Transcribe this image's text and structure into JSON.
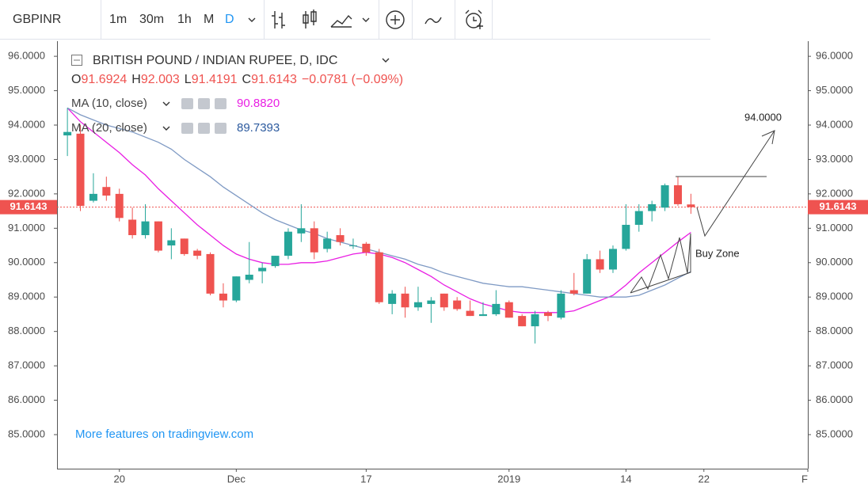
{
  "toolbar": {
    "symbol": "GBPINR",
    "intervals": [
      "1m",
      "30m",
      "1h",
      "M",
      "D"
    ],
    "active_interval": 4
  },
  "legend": {
    "change": "−0.0781 (−0.09%)",
    "ohlc_keys": [
      "O",
      "H",
      "L",
      "C"
    ]
  },
  "chart_data": {
    "type": "candlestick",
    "title": "BRITISH POUND / INDIAN RUPEE, D, IDC",
    "up_color": "#26a69a",
    "down_color": "#ef5350",
    "open": [
      93.7,
      93.75,
      91.8,
      92.2,
      92.0,
      91.25,
      90.8,
      91.2,
      90.5,
      90.7,
      90.35,
      90.25,
      89.1,
      88.9,
      89.5,
      89.75,
      89.9,
      90.2,
      90.85,
      91.0,
      90.4,
      90.8,
      90.5,
      90.55,
      90.3,
      88.8,
      89.1,
      88.7,
      88.8,
      89.1,
      88.9,
      88.6,
      88.45,
      88.5,
      88.85,
      88.45,
      88.15,
      88.55,
      88.4,
      89.2,
      89.1,
      90.1,
      89.8,
      90.4,
      91.1,
      91.5,
      91.6,
      92.25,
      91.6924
    ],
    "high": [
      94.5,
      94.0,
      92.6,
      92.5,
      92.15,
      91.6,
      91.7,
      91.2,
      91.0,
      90.7,
      90.4,
      90.3,
      89.4,
      89.6,
      90.6,
      90.0,
      90.2,
      91.0,
      91.7,
      91.2,
      90.9,
      91.0,
      90.7,
      90.6,
      90.4,
      89.2,
      89.3,
      89.3,
      89.0,
      89.1,
      89.0,
      88.9,
      88.85,
      89.2,
      88.9,
      88.5,
      88.6,
      88.6,
      89.2,
      89.7,
      90.25,
      90.35,
      90.5,
      91.7,
      91.7,
      91.8,
      92.3,
      92.5,
      92.003
    ],
    "low": [
      93.1,
      91.5,
      91.75,
      91.8,
      91.2,
      90.7,
      90.7,
      90.3,
      90.1,
      90.2,
      90.1,
      89.05,
      88.7,
      88.85,
      89.4,
      89.4,
      89.85,
      90.1,
      90.6,
      90.1,
      90.3,
      90.5,
      90.4,
      90.2,
      88.8,
      88.5,
      88.4,
      88.6,
      88.25,
      88.6,
      88.6,
      88.45,
      88.45,
      88.45,
      88.4,
      88.15,
      87.65,
      88.3,
      88.35,
      89.05,
      89.1,
      89.7,
      89.7,
      90.35,
      90.9,
      91.2,
      91.5,
      91.65,
      91.4191
    ],
    "close": [
      93.8,
      91.65,
      92.0,
      91.95,
      91.3,
      90.8,
      91.2,
      90.35,
      90.65,
      90.25,
      90.2,
      89.1,
      88.9,
      89.6,
      89.65,
      89.85,
      90.2,
      90.9,
      91.0,
      90.3,
      90.7,
      90.6,
      90.5,
      90.3,
      88.85,
      89.1,
      88.7,
      88.85,
      88.9,
      88.7,
      88.65,
      88.45,
      88.5,
      88.8,
      88.4,
      88.15,
      88.5,
      88.45,
      89.1,
      89.1,
      90.1,
      89.8,
      90.4,
      91.1,
      91.5,
      91.7,
      92.25,
      91.7,
      91.6143
    ],
    "series": [
      {
        "name": "MA (10, close)",
        "type": "line",
        "color": "#e91ee3",
        "last_label": "90.8820",
        "values": [
          94.5,
          94.1,
          93.8,
          93.5,
          93.2,
          92.85,
          92.55,
          92.15,
          91.8,
          91.45,
          91.1,
          90.8,
          90.5,
          90.25,
          90.1,
          90.0,
          89.95,
          89.95,
          90.0,
          90.0,
          90.05,
          90.15,
          90.25,
          90.3,
          90.25,
          90.15,
          90.0,
          89.8,
          89.6,
          89.35,
          89.15,
          88.95,
          88.8,
          88.7,
          88.6,
          88.55,
          88.55,
          88.55,
          88.55,
          88.6,
          88.75,
          88.9,
          89.05,
          89.35,
          89.7,
          90.0,
          90.3,
          90.6,
          90.882
        ]
      },
      {
        "name": "MA (20, close)",
        "type": "line",
        "color": "#7f9ac4",
        "label_color": "#2c5a9e",
        "last_label": "89.7393",
        "values": [
          94.5,
          94.3,
          94.15,
          94.0,
          93.9,
          93.8,
          93.65,
          93.5,
          93.3,
          93.0,
          92.75,
          92.5,
          92.2,
          91.95,
          91.7,
          91.45,
          91.25,
          91.1,
          90.95,
          90.85,
          90.7,
          90.6,
          90.5,
          90.4,
          90.3,
          90.2,
          90.1,
          89.95,
          89.85,
          89.7,
          89.6,
          89.5,
          89.4,
          89.35,
          89.3,
          89.3,
          89.25,
          89.2,
          89.15,
          89.1,
          89.05,
          89.0,
          89.0,
          89.0,
          89.05,
          89.2,
          89.35,
          89.55,
          89.7393
        ]
      }
    ],
    "xlim": [
      -0.8,
      57
    ],
    "xticks": [
      {
        "value": 4,
        "label": "20"
      },
      {
        "value": 13,
        "label": "Dec"
      },
      {
        "value": 23,
        "label": "17"
      },
      {
        "value": 34,
        "label": "2019"
      },
      {
        "value": 43,
        "label": "14"
      },
      {
        "value": 49,
        "label": "22"
      },
      {
        "value": 57,
        "label": "F"
      }
    ],
    "ylim": [
      84.01,
      96.44
    ],
    "yticks": [
      {
        "value": 85,
        "label": "85.0000"
      },
      {
        "value": 86,
        "label": "86.0000"
      },
      {
        "value": 87,
        "label": "87.0000"
      },
      {
        "value": 88,
        "label": "88.0000"
      },
      {
        "value": 89,
        "label": "89.0000"
      },
      {
        "value": 90,
        "label": "90.0000"
      },
      {
        "value": 91,
        "label": "91.0000"
      },
      {
        "value": 92,
        "label": "92.0000"
      },
      {
        "value": 93,
        "label": "93.0000"
      },
      {
        "value": 94,
        "label": "94.0000"
      },
      {
        "value": 95,
        "label": "95.0000"
      },
      {
        "value": 96,
        "label": "96.0000"
      }
    ],
    "last_price": 91.6143,
    "grid": false,
    "annotations": [
      "94.0000",
      "Buy Zone"
    ],
    "watermark": "More features on tradingview.com"
  }
}
